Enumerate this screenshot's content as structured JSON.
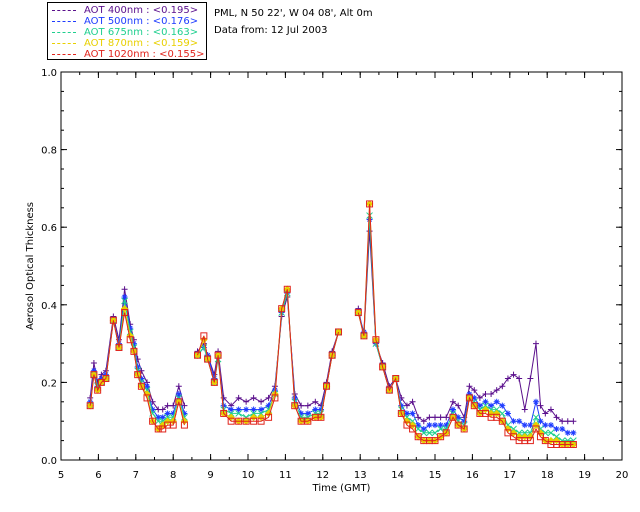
{
  "header": {
    "location": "PML, N 50 22', W 04 08', Alt 0m",
    "date": "Data from: 12 Jul 2003"
  },
  "colors": {
    "aot400": "#5a0f8c",
    "aot500": "#1f3cff",
    "aot675": "#1fcf8f",
    "aot870": "#e8d000",
    "aot1020": "#e0241c"
  },
  "chart_data": {
    "type": "line",
    "xlabel": "Time (GMT)",
    "ylabel": "Aerosol Optical Thickness",
    "xlim": [
      5,
      20
    ],
    "ylim": [
      0.0,
      1.0
    ],
    "xticks": [
      "5",
      "6",
      "7",
      "8",
      "9",
      "10",
      "11",
      "12",
      "13",
      "14",
      "15",
      "16",
      "17",
      "18",
      "19",
      "20"
    ],
    "yticks": [
      "0.0",
      "0.2",
      "0.4",
      "0.6",
      "0.8",
      "1.0"
    ],
    "legend_position": "top-left",
    "x": [
      5.78,
      5.88,
      5.98,
      6.08,
      6.2,
      6.4,
      6.55,
      6.7,
      6.85,
      6.95,
      7.05,
      7.15,
      7.3,
      7.45,
      7.6,
      7.72,
      7.85,
      8.0,
      8.15,
      8.3,
      8.65,
      8.82,
      8.92,
      9.1,
      9.2,
      9.35,
      9.55,
      9.75,
      9.95,
      10.15,
      10.35,
      10.55,
      10.72,
      10.9,
      11.05,
      11.25,
      11.42,
      11.6,
      11.8,
      11.95,
      12.1,
      12.25,
      12.42,
      12.95,
      13.1,
      13.25,
      13.42,
      13.6,
      13.78,
      13.95,
      14.1,
      14.25,
      14.4,
      14.55,
      14.7,
      14.85,
      15.0,
      15.15,
      15.3,
      15.48,
      15.62,
      15.78,
      15.92,
      16.05,
      16.2,
      16.35,
      16.5,
      16.65,
      16.8,
      16.95,
      17.1,
      17.25,
      17.4,
      17.55,
      17.7,
      17.82,
      17.95,
      18.1,
      18.25,
      18.4,
      18.55,
      18.7
    ],
    "series": [
      {
        "name": "AOT  400nm : <0.195>",
        "color": "#5a0f8c",
        "marker": "plus",
        "values": [
          0.16,
          0.25,
          0.2,
          0.22,
          0.23,
          0.37,
          0.31,
          0.44,
          0.35,
          0.31,
          0.26,
          0.23,
          0.2,
          0.15,
          0.13,
          0.13,
          0.14,
          0.14,
          0.19,
          0.14,
          0.28,
          0.3,
          0.27,
          0.22,
          0.28,
          0.16,
          0.14,
          0.16,
          0.15,
          0.16,
          0.15,
          0.16,
          0.19,
          0.37,
          0.42,
          0.17,
          0.14,
          0.14,
          0.15,
          0.14,
          0.2,
          0.28,
          0.33,
          0.39,
          0.32,
          0.59,
          0.3,
          0.25,
          0.19,
          0.21,
          0.16,
          0.14,
          0.15,
          0.11,
          0.1,
          0.11,
          0.11,
          0.11,
          0.11,
          0.15,
          0.14,
          0.11,
          0.19,
          0.18,
          0.16,
          0.17,
          0.17,
          0.18,
          0.19,
          0.21,
          0.22,
          0.21,
          0.13,
          0.21,
          0.3,
          0.14,
          0.12,
          0.13,
          0.11,
          0.1,
          0.1,
          0.1
        ]
      },
      {
        "name": "AOT  500nm : <0.176>",
        "color": "#1f3cff",
        "marker": "asterisk",
        "values": [
          0.15,
          0.23,
          0.19,
          0.21,
          0.22,
          0.36,
          0.3,
          0.42,
          0.34,
          0.3,
          0.24,
          0.21,
          0.19,
          0.13,
          0.11,
          0.11,
          0.12,
          0.12,
          0.17,
          0.12,
          0.27,
          0.29,
          0.27,
          0.21,
          0.27,
          0.14,
          0.13,
          0.13,
          0.13,
          0.13,
          0.13,
          0.14,
          0.18,
          0.38,
          0.43,
          0.16,
          0.12,
          0.12,
          0.13,
          0.13,
          0.19,
          0.27,
          0.33,
          0.38,
          0.33,
          0.62,
          0.3,
          0.24,
          0.18,
          0.21,
          0.14,
          0.12,
          0.12,
          0.09,
          0.08,
          0.09,
          0.09,
          0.09,
          0.09,
          0.13,
          0.11,
          0.1,
          0.17,
          0.16,
          0.14,
          0.15,
          0.14,
          0.15,
          0.14,
          0.12,
          0.1,
          0.1,
          0.09,
          0.09,
          0.15,
          0.1,
          0.09,
          0.09,
          0.08,
          0.08,
          0.07,
          0.07
        ]
      },
      {
        "name": "AOT  675nm : <0.163>",
        "color": "#1fcf8f",
        "marker": "x",
        "values": [
          0.14,
          0.22,
          0.19,
          0.2,
          0.21,
          0.36,
          0.29,
          0.41,
          0.33,
          0.29,
          0.23,
          0.2,
          0.18,
          0.12,
          0.1,
          0.1,
          0.11,
          0.11,
          0.16,
          0.11,
          0.27,
          0.29,
          0.26,
          0.2,
          0.26,
          0.13,
          0.12,
          0.12,
          0.11,
          0.12,
          0.12,
          0.13,
          0.17,
          0.38,
          0.43,
          0.15,
          0.11,
          0.11,
          0.12,
          0.12,
          0.19,
          0.27,
          0.33,
          0.38,
          0.32,
          0.63,
          0.3,
          0.24,
          0.18,
          0.21,
          0.13,
          0.11,
          0.1,
          0.08,
          0.07,
          0.07,
          0.07,
          0.08,
          0.08,
          0.12,
          0.1,
          0.09,
          0.16,
          0.15,
          0.13,
          0.14,
          0.13,
          0.13,
          0.12,
          0.09,
          0.08,
          0.07,
          0.07,
          0.07,
          0.11,
          0.08,
          0.07,
          0.07,
          0.06,
          0.05,
          0.05,
          0.05
        ]
      },
      {
        "name": "AOT  870nm : <0.159>",
        "color": "#e8d000",
        "marker": "diamond",
        "values": [
          0.14,
          0.22,
          0.18,
          0.2,
          0.21,
          0.36,
          0.29,
          0.39,
          0.32,
          0.28,
          0.22,
          0.19,
          0.17,
          0.1,
          0.08,
          0.09,
          0.1,
          0.1,
          0.15,
          0.1,
          0.27,
          0.31,
          0.26,
          0.2,
          0.27,
          0.12,
          0.11,
          0.1,
          0.1,
          0.11,
          0.11,
          0.12,
          0.17,
          0.39,
          0.44,
          0.14,
          0.1,
          0.1,
          0.11,
          0.11,
          0.19,
          0.27,
          0.33,
          0.38,
          0.32,
          0.66,
          0.31,
          0.24,
          0.18,
          0.21,
          0.12,
          0.1,
          0.09,
          0.06,
          0.05,
          0.05,
          0.05,
          0.06,
          0.07,
          0.11,
          0.09,
          0.08,
          0.16,
          0.14,
          0.12,
          0.13,
          0.12,
          0.12,
          0.1,
          0.08,
          0.07,
          0.06,
          0.06,
          0.06,
          0.09,
          0.07,
          0.05,
          0.05,
          0.05,
          0.04,
          0.04,
          0.04
        ]
      },
      {
        "name": "AOT 1020nm : <0.155>",
        "color": "#e0241c",
        "marker": "square",
        "values": [
          0.14,
          0.22,
          0.18,
          0.2,
          0.21,
          0.36,
          0.29,
          0.38,
          0.31,
          0.28,
          0.22,
          0.19,
          0.16,
          0.1,
          0.08,
          0.08,
          0.09,
          0.09,
          0.15,
          0.09,
          0.27,
          0.32,
          0.26,
          0.2,
          0.27,
          0.12,
          0.1,
          0.1,
          0.1,
          0.1,
          0.1,
          0.11,
          0.16,
          0.39,
          0.44,
          0.14,
          0.1,
          0.1,
          0.11,
          0.11,
          0.19,
          0.27,
          0.33,
          0.38,
          0.32,
          0.66,
          0.31,
          0.24,
          0.18,
          0.21,
          0.12,
          0.09,
          0.08,
          0.06,
          0.05,
          0.05,
          0.05,
          0.06,
          0.07,
          0.11,
          0.09,
          0.08,
          0.16,
          0.14,
          0.12,
          0.12,
          0.11,
          0.11,
          0.1,
          0.07,
          0.06,
          0.05,
          0.05,
          0.05,
          0.08,
          0.06,
          0.05,
          0.04,
          0.04,
          0.04,
          0.04,
          0.04
        ]
      }
    ]
  }
}
